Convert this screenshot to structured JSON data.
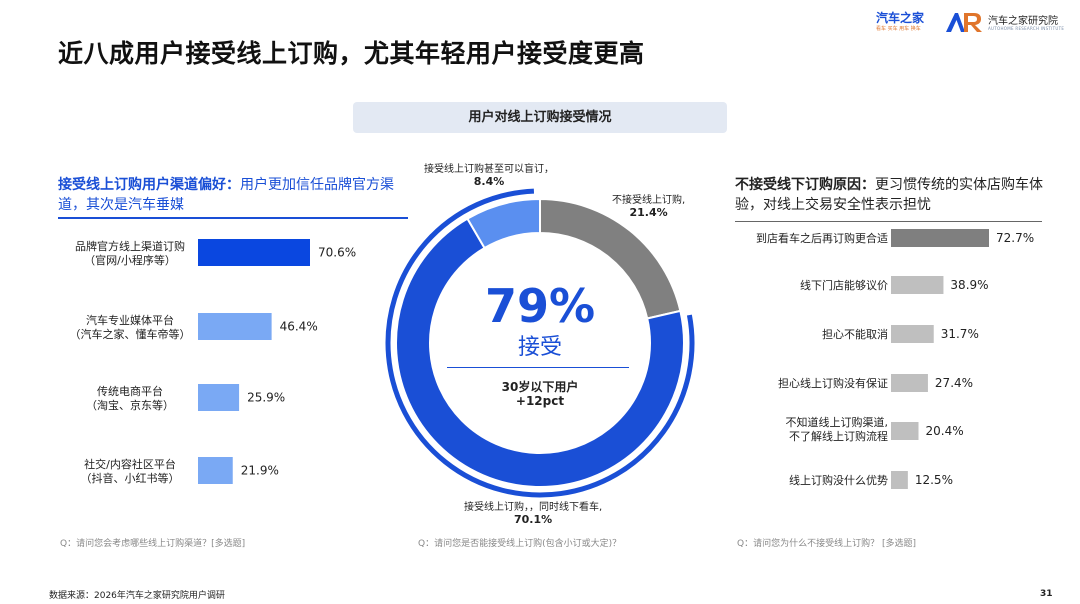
{
  "title": "近八成用户接受线上订购，尤其年轻用户接受度更高",
  "logos": {
    "autohome": "汽车之家",
    "autohome_sub": "看车 买车 用车 换车",
    "institute": "汽车之家研究院",
    "institute_sub": "AUTOHOME RESEARCH INSTITUTE"
  },
  "center_header": "用户对线上订购接受情况",
  "left_panel": {
    "heading_bold": "接受线上订购用户渠道偏好：",
    "heading_rest": "用户更加信任品牌官方渠道，其次是汽车垂媒",
    "question": "Q：请问您会考虑哪些线上订购渠道？[多选题]"
  },
  "right_panel": {
    "heading_bold": "不接受线下订购原因：",
    "heading_rest": "更习惯传统的实体店购车体验，对线上交易安全性表示担忧",
    "question": "Q：请问您为什么不接受线上订购？ [多选题]"
  },
  "donut": {
    "big_pct": "79%",
    "big_label": "接受",
    "note_line1": "30岁以下用户",
    "note_line2": "+12pct",
    "question": "Q：请问您是否能接受线上订购(包含小订或大定)？",
    "colors": {
      "accept": "#1a4fd6",
      "not_accept": "#808080",
      "only_online": "#5a8ff0",
      "outer_arc": "#1a4fd6"
    }
  },
  "chart_data": [
    {
      "type": "pie",
      "categories": [
        "接受线上订购，，同时线下看车,",
        "不接受线上订购,",
        "接受线上订购甚至可以盲订，"
      ],
      "values": [
        70.1,
        21.4,
        8.4
      ],
      "value_labels": [
        "70.1%",
        "21.4%",
        "8.4%"
      ]
    },
    {
      "type": "bar",
      "orientation": "horizontal",
      "categories": [
        [
          "品牌官方线上渠道订购",
          "（官网/小程序等）"
        ],
        [
          "汽车专业媒体平台",
          "（汽车之家、懂车帝等）"
        ],
        [
          "传统电商平台",
          "（淘宝、京东等）"
        ],
        [
          "社交/内容社区平台",
          "（抖音、小红书等）"
        ]
      ],
      "values": [
        70.6,
        46.4,
        25.9,
        21.9
      ],
      "value_labels": [
        "70.6%",
        "46.4%",
        "25.9%",
        "21.9%"
      ],
      "colors": [
        "#0a47e0",
        "#7aa9f4",
        "#7aa9f4",
        "#7aa9f4"
      ]
    },
    {
      "type": "bar",
      "orientation": "horizontal",
      "categories": [
        [
          "到店看车之后再订购更合适"
        ],
        [
          "线下门店能够议价"
        ],
        [
          "担心不能取消"
        ],
        [
          "担心线上订购没有保证"
        ],
        [
          "不知道线上订购渠道,",
          "不了解线上订购流程"
        ],
        [
          "线上订购没什么优势"
        ]
      ],
      "values": [
        72.7,
        38.9,
        31.7,
        27.4,
        20.4,
        12.5
      ],
      "value_labels": [
        "72.7%",
        "38.9%",
        "31.7%",
        "27.4%",
        "20.4%",
        "12.5%"
      ],
      "colors": [
        "#7f7f7f",
        "#bfbfbf",
        "#bfbfbf",
        "#bfbfbf",
        "#bfbfbf",
        "#bfbfbf"
      ]
    }
  ],
  "footer": {
    "source": "数据来源：2026年汽车之家研究院用户调研",
    "page": "31"
  }
}
